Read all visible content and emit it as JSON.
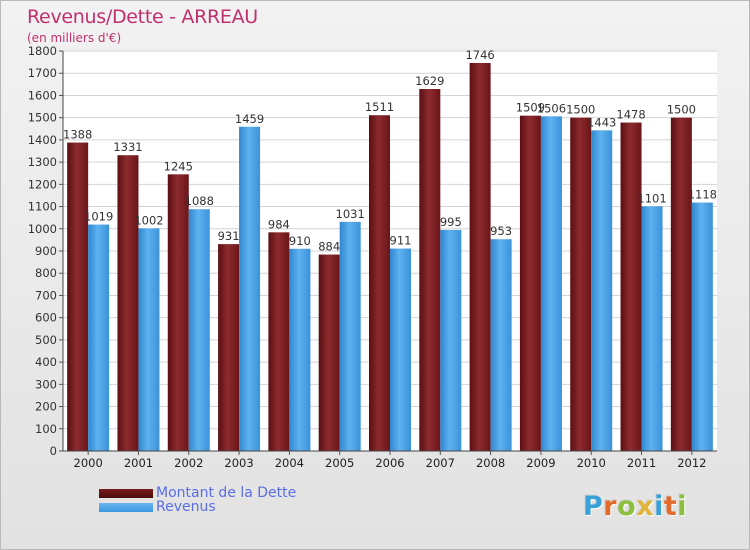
{
  "header": {
    "title": "Revenus/Dette - ARREAU",
    "subtitle": "(en milliers d'€)"
  },
  "legend": [
    {
      "label": "Montant de la Dette",
      "color": "#7a1d1d"
    },
    {
      "label": "Revenus",
      "color": "#3d98e0"
    }
  ],
  "logo": {
    "letters": [
      "P",
      "r",
      "o",
      "x",
      "i",
      "t",
      "i"
    ],
    "colors": [
      "#3aa0d8",
      "#e46a2b",
      "#8cbf3f",
      "#e0b43b",
      "#3aa0d8",
      "#e46a2b",
      "#8cbf3f"
    ]
  },
  "chart_data": {
    "type": "bar",
    "title": "Revenus/Dette - ARREAU",
    "subtitle": "(en milliers d'€)",
    "categories": [
      "2000",
      "2001",
      "2002",
      "2003",
      "2004",
      "2005",
      "2006",
      "2007",
      "2008",
      "2009",
      "2010",
      "2011",
      "2012"
    ],
    "series": [
      {
        "name": "Montant de la Dette",
        "color": "#7a1d1d",
        "values": [
          1388,
          1331,
          1245,
          931,
          984,
          884,
          1511,
          1629,
          1746,
          1509,
          1500,
          1478,
          1500
        ]
      },
      {
        "name": "Revenus",
        "color": "#3d98e0",
        "values": [
          1019,
          1002,
          1088,
          1459,
          910,
          1031,
          911,
          995,
          953,
          1506,
          1443,
          1101,
          1118
        ]
      }
    ],
    "ylim": [
      0,
      1800
    ],
    "yticks": [
      0,
      100,
      200,
      300,
      400,
      500,
      600,
      700,
      800,
      900,
      1000,
      1100,
      1200,
      1300,
      1400,
      1500,
      1600,
      1700,
      1800
    ],
    "grid": true,
    "legend_position": "bottom-left"
  }
}
